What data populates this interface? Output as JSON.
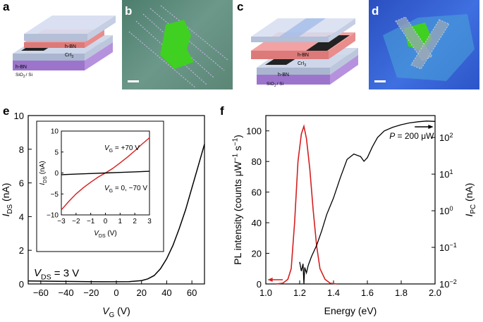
{
  "panels": {
    "a": "a",
    "b": "b",
    "c": "c",
    "d": "d",
    "e": "e",
    "f": "f"
  },
  "schematic_a": {
    "layer_top": "h-BN",
    "layer_mid": "CrI",
    "layer_mid_sub": "3",
    "layer_bottom": "h-BN",
    "substrate": "SiO",
    "substrate_sub": "2",
    "substrate_tail": "/ Si"
  },
  "schematic_c": {
    "layer_top": "h-BN",
    "layer_mid": "CrI",
    "layer_mid_sub": "3",
    "layer_bottom": "h-BN",
    "substrate": "SiO",
    "substrate_sub": "2",
    "substrate_tail": "/ Si"
  },
  "colors": {
    "curve_black": "#000000",
    "curve_red": "#d41f1f",
    "hbn": "#b8c8e8",
    "cri3": "#e88a8a",
    "substrate": "#b58fd8",
    "photo_b": "#5c8a7a",
    "photo_d": "#2c55c8",
    "flake": "#40d020"
  },
  "chart_data": [
    {
      "id": "e-main",
      "type": "line",
      "title": "",
      "xlabel": "V",
      "xlabel_sub": "G",
      "xlabel_unit": "(V)",
      "ylabel": "I",
      "ylabel_sub": "DS",
      "ylabel_unit": "(nA)",
      "xlim": [
        -70,
        70
      ],
      "ylim": [
        0,
        10
      ],
      "xticks": [
        "-60",
        "-40",
        "-20",
        "0",
        "20",
        "40",
        "60"
      ],
      "xtick_values": [
        -60,
        -40,
        -20,
        0,
        20,
        40,
        60
      ],
      "yticks": [
        "0",
        "2",
        "4",
        "6",
        "8",
        "10"
      ],
      "ytick_values": [
        0,
        2,
        4,
        6,
        8,
        10
      ],
      "annotation": {
        "main": "V",
        "sub": "DS",
        "tail": "= 3 V"
      },
      "series": [
        {
          "name": "I_DS",
          "color": "#000000",
          "x": [
            -70,
            -40,
            -10,
            10,
            20,
            25,
            30,
            35,
            40,
            45,
            50,
            55,
            60,
            65,
            70
          ],
          "y": [
            0.18,
            0.15,
            0.13,
            0.14,
            0.2,
            0.3,
            0.5,
            0.9,
            1.5,
            2.3,
            3.3,
            4.4,
            5.7,
            7.0,
            8.3
          ]
        }
      ]
    },
    {
      "id": "e-inset",
      "type": "line",
      "xlabel": "V",
      "xlabel_sub": "DS",
      "xlabel_unit": "(V)",
      "ylabel": "I",
      "ylabel_sub": "DS",
      "ylabel_unit": "(nA)",
      "xlim": [
        -3,
        3
      ],
      "ylim": [
        -10,
        10
      ],
      "xticks": [
        "-3",
        "-2",
        "-1",
        "0",
        "1",
        "2",
        "3"
      ],
      "xtick_values": [
        -3,
        -2,
        -1,
        0,
        1,
        2,
        3
      ],
      "yticks": [
        "-10",
        "-5",
        "0",
        "5",
        "10"
      ],
      "ytick_values": [
        -10,
        -5,
        0,
        5,
        10
      ],
      "series": [
        {
          "name": "V_G = +70 V",
          "label_main": "V",
          "label_sub": "G",
          "label_tail": "= +70 V",
          "color": "#d41f1f",
          "x": [
            -3,
            -2.5,
            -2,
            -1.5,
            -1,
            -0.5,
            0,
            0.5,
            1,
            1.5,
            2,
            2.5,
            3
          ],
          "y": [
            -8.8,
            -6.8,
            -5.0,
            -3.5,
            -2.2,
            -1.0,
            0,
            1.1,
            2.4,
            3.8,
            5.3,
            6.9,
            8.4
          ]
        },
        {
          "name": "V_G = 0, -70 V",
          "label_main": "V",
          "label_sub": "G",
          "label_tail": "= 0, −70 V",
          "color": "#000000",
          "x": [
            -3,
            -2,
            -1,
            0,
            1,
            2,
            3
          ],
          "y": [
            -0.4,
            -0.27,
            -0.13,
            0,
            0.13,
            0.27,
            0.4
          ]
        }
      ]
    },
    {
      "id": "f",
      "type": "line",
      "xlabel": "Energy (eV)",
      "xlim": [
        1.0,
        2.0
      ],
      "xticks": [
        "1.0",
        "1.2",
        "1.4",
        "1.6",
        "1.8",
        "2.0"
      ],
      "xtick_values": [
        1.0,
        1.2,
        1.4,
        1.6,
        1.8,
        2.0
      ],
      "ylabel_left": "PL intensity (counts μW",
      "ylabel_left_sup1": "−1",
      "ylabel_left_mid": " s",
      "ylabel_left_sup2": "−1",
      "ylabel_left_tail": ")",
      "ylim_left": [
        0,
        110
      ],
      "yticks_left": [
        "0",
        "20",
        "40",
        "60",
        "80",
        "100"
      ],
      "ytick_values_left": [
        0,
        20,
        40,
        60,
        80,
        100
      ],
      "ylabel_right": "I",
      "ylabel_right_sub": "PC",
      "ylabel_right_unit": "(nA)",
      "ylim_right_log": [
        -2,
        2.6
      ],
      "yticks_right": [
        {
          "base": "10",
          "exp": "2"
        },
        {
          "base": "10",
          "exp": "1"
        },
        {
          "base": "10",
          "exp": "0"
        },
        {
          "base": "10",
          "exp": "−1"
        },
        {
          "base": "10",
          "exp": "−2"
        }
      ],
      "ytick_values_right_log": [
        2,
        1,
        0,
        -1,
        -2
      ],
      "annotation": {
        "main": "P",
        "tail": "= 200 μW"
      },
      "series": [
        {
          "name": "PL",
          "axis": "left",
          "color": "#d41f1f",
          "x": [
            1.06,
            1.1,
            1.13,
            1.15,
            1.17,
            1.19,
            1.21,
            1.225,
            1.24,
            1.26,
            1.28,
            1.3,
            1.32,
            1.35,
            1.38,
            1.42
          ],
          "y": [
            0,
            0.5,
            3,
            10,
            40,
            80,
            98,
            103,
            95,
            75,
            48,
            25,
            10,
            3,
            0.5,
            0
          ]
        },
        {
          "name": "I_PC",
          "axis": "right",
          "color": "#000000",
          "x": [
            1.2,
            1.21,
            1.22,
            1.225,
            1.23,
            1.24,
            1.25,
            1.27,
            1.3,
            1.33,
            1.36,
            1.4,
            1.44,
            1.48,
            1.52,
            1.56,
            1.58,
            1.6,
            1.63,
            1.66,
            1.7,
            1.75,
            1.8,
            1.85,
            1.9,
            1.95,
            2.0
          ],
          "y_log": [
            -1.4,
            -1.65,
            -1.45,
            -2.0,
            -1.55,
            -1.7,
            -1.5,
            -1.25,
            -0.95,
            -0.55,
            -0.1,
            0.35,
            0.9,
            1.4,
            1.55,
            1.48,
            1.35,
            1.45,
            1.75,
            2.0,
            2.18,
            2.28,
            2.35,
            2.4,
            2.43,
            2.45,
            2.44
          ]
        }
      ]
    }
  ]
}
